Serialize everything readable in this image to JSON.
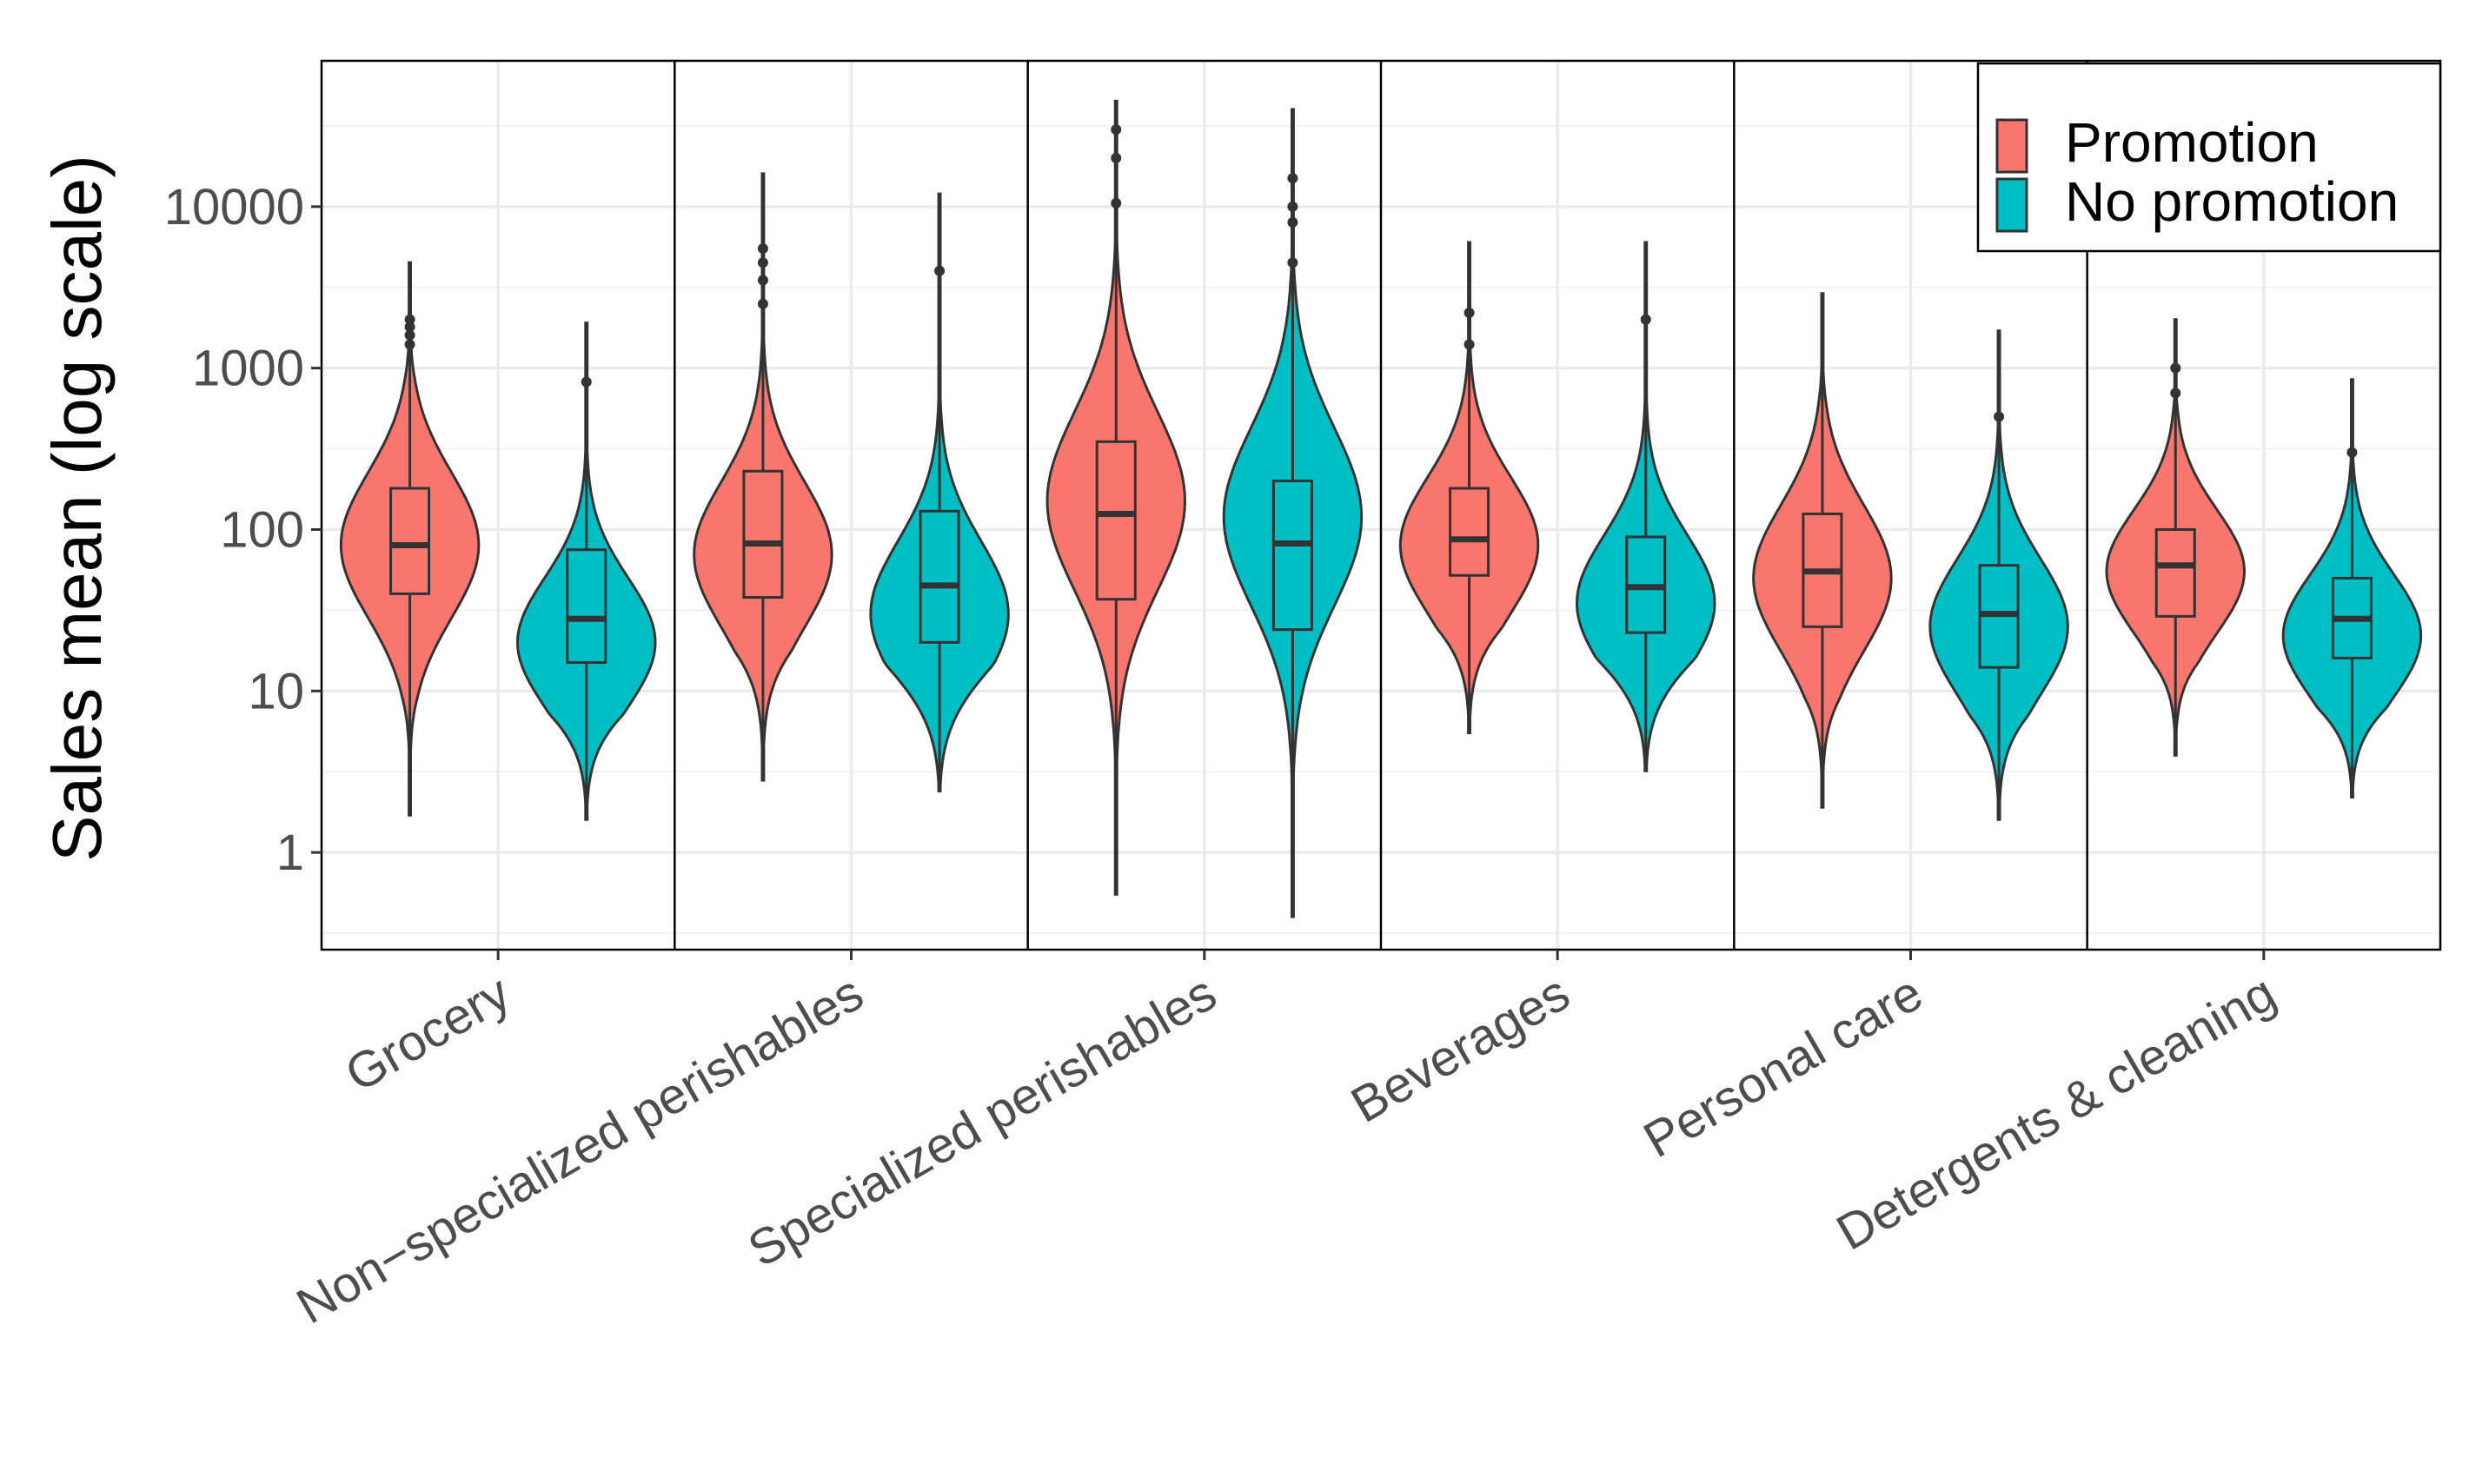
{
  "chart_data": {
    "type": "violin",
    "title": "",
    "xlabel": "",
    "ylabel": "Sales mean (log scale)",
    "yscale": "log10",
    "ylim": [
      0.25,
      80000
    ],
    "y_ticks": [
      1,
      10,
      100,
      1000,
      10000
    ],
    "y_tick_labels": [
      "1",
      "10",
      "100",
      "1000",
      "10000"
    ],
    "grid": true,
    "legend": {
      "position": "top-right",
      "entries": [
        {
          "name": "Promotion",
          "color": "#F8766D"
        },
        {
          "name": "No promotion",
          "color": "#00BFC4"
        }
      ]
    },
    "categories": [
      "Grocery",
      "Non−specialized perishables",
      "Specialized perishables",
      "Beverages",
      "Personal care",
      "Detergents & cleaning"
    ],
    "series": [
      {
        "name": "Promotion",
        "color": "#F8766D",
        "violins": [
          {
            "min": 1.7,
            "max": 4500,
            "q1": 40,
            "median": 80,
            "q3": 180,
            "whisker_low": 6,
            "whisker_high": 1200,
            "mode": 80,
            "spread": 0.45,
            "outliers": [
              1400,
              1600,
              1800,
              2000
            ]
          },
          {
            "min": 2.8,
            "max": 16000,
            "q1": 38,
            "median": 82,
            "q3": 230,
            "whisker_low": 5,
            "whisker_high": 1600,
            "mode": 70,
            "spread": 0.45,
            "outliers": [
              2500,
              3500,
              4500,
              5500
            ]
          },
          {
            "min": 0.55,
            "max": 45000,
            "q1": 37,
            "median": 125,
            "q3": 350,
            "whisker_low": 1.2,
            "whisker_high": 5000,
            "mode": 150,
            "spread": 0.55,
            "outliers": [
              10500,
              20000,
              30000
            ]
          },
          {
            "min": 5.5,
            "max": 6000,
            "q1": 52,
            "median": 87,
            "q3": 180,
            "whisker_low": 15,
            "whisker_high": 850,
            "mode": 80,
            "spread": 0.42,
            "outliers": [
              1400,
              2200
            ]
          },
          {
            "min": 1.9,
            "max": 2900,
            "q1": 25,
            "median": 55,
            "q3": 125,
            "whisker_low": 7,
            "whisker_high": 800,
            "mode": 50,
            "spread": 0.45,
            "outliers": []
          },
          {
            "min": 4,
            "max": 2000,
            "q1": 29,
            "median": 60,
            "q3": 100,
            "whisker_low": 12,
            "whisker_high": 240,
            "mode": 55,
            "spread": 0.38,
            "outliers": [
              700,
              1000
            ]
          }
        ]
      },
      {
        "name": "No promotion",
        "color": "#00BFC4",
        "violins": [
          {
            "min": 1.6,
            "max": 1900,
            "q1": 15,
            "median": 28,
            "q3": 75,
            "whisker_low": 5,
            "whisker_high": 750,
            "mode": 20,
            "spread": 0.4,
            "outliers": [
              820
            ]
          },
          {
            "min": 2.4,
            "max": 12000,
            "q1": 20,
            "median": 45,
            "q3": 130,
            "whisker_low": 7,
            "whisker_high": 2200,
            "mode": 30,
            "spread": 0.45,
            "outliers": [
              4000
            ]
          },
          {
            "min": 0.4,
            "max": 40000,
            "q1": 24,
            "median": 82,
            "q3": 200,
            "whisker_low": 1.1,
            "whisker_high": 4000,
            "mode": 120,
            "spread": 0.55,
            "outliers": [
              4500,
              8000,
              10000,
              15000
            ]
          },
          {
            "min": 3.2,
            "max": 6000,
            "q1": 23,
            "median": 44,
            "q3": 90,
            "whisker_low": 10,
            "whisker_high": 600,
            "mode": 35,
            "spread": 0.42,
            "outliers": [
              2000
            ]
          },
          {
            "min": 1.6,
            "max": 1700,
            "q1": 14,
            "median": 30,
            "q3": 60,
            "whisker_low": 5.5,
            "whisker_high": 350,
            "mode": 25,
            "spread": 0.42,
            "outliers": [
              500
            ]
          },
          {
            "min": 2.2,
            "max": 850,
            "q1": 16,
            "median": 28,
            "q3": 50,
            "whisker_low": 6.5,
            "whisker_high": 110,
            "mode": 22,
            "spread": 0.38,
            "outliers": [
              300
            ]
          }
        ]
      }
    ]
  }
}
